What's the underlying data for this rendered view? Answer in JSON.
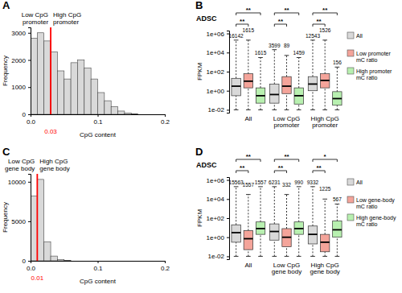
{
  "chart_data": [
    {
      "type": "histogram",
      "panel": "A",
      "bins": [
        0,
        0.01,
        0.02,
        0.03,
        0.04,
        0.05,
        0.06,
        0.07,
        0.08,
        0.09,
        0.1,
        0.11,
        0.12,
        0.13,
        0.14,
        0.15,
        0.16
      ],
      "values": [
        2800,
        3000,
        2700,
        2300,
        1600,
        1300,
        1900,
        2000,
        1700,
        1300,
        800,
        500,
        280,
        120,
        50,
        20
      ],
      "color": "#d9d9d9",
      "x_label": "CpG content",
      "y_label": "Frequency",
      "xlim": [
        0,
        0.2
      ],
      "xticks": [
        {
          "value": 0,
          "label": "0.0"
        },
        0.1,
        0.2
      ],
      "ylim": [
        0,
        3200
      ],
      "yticks": [
        0,
        1000,
        2000,
        3000
      ],
      "threshold": {
        "value": 0.03,
        "label": "0.03",
        "color": "#ff0000"
      },
      "annotations": [
        "Low CpG\npromoter",
        "High CpG\npromoter"
      ]
    },
    {
      "type": "box",
      "panel": "B",
      "title": "ADSC",
      "y_label": "FPKM",
      "log": "y",
      "categories": [
        "All",
        "Low CpG\npromoter",
        "High CpG\npromoter"
      ],
      "ylim": [
        0.005,
        2000000
      ],
      "yticks": [
        {
          "value": 0.01,
          "label": "1e-02"
        },
        {
          "value": 1,
          "label": "1e+00"
        },
        {
          "value": 100,
          "label": "1e+02"
        },
        {
          "value": 10000,
          "label": "1e+04"
        },
        {
          "value": 1000000,
          "label": "1e+06"
        }
      ],
      "series": [
        {
          "name": "All",
          "color": "#d9d9d9",
          "values": [
            [
              0.01,
              0.3,
              3,
              20,
              200000
            ],
            [
              0.01,
              0.05,
              0.4,
              5,
              20000
            ],
            [
              0.01,
              1,
              5,
              30,
              200000
            ]
          ],
          "counts": [
            16142,
            3599,
            12543
          ]
        },
        {
          "name": "Low promoter\nmC ratio",
          "color": "#f4a49a",
          "values": [
            [
              0.01,
              2,
              10,
              60,
              200000
            ],
            [
              0.01,
              0.5,
              3,
              30,
              5000
            ],
            [
              0.01,
              2,
              12,
              60,
              200000
            ]
          ],
          "counts": [
            1615,
            89,
            1526
          ]
        },
        {
          "name": "High promoter\nmC ratio",
          "color": "#b8f0b0",
          "values": [
            [
              0.01,
              0.05,
              0.3,
              2,
              3000
            ],
            [
              0.01,
              0.04,
              0.3,
              2,
              3000
            ],
            [
              0.01,
              0.03,
              0.15,
              0.8,
              300
            ]
          ],
          "counts": [
            1615,
            1459,
            156
          ]
        }
      ],
      "significance": [
        [
          "**",
          "**"
        ],
        [
          "**",
          "**"
        ],
        [
          "**",
          "**"
        ]
      ]
    },
    {
      "type": "histogram",
      "panel": "C",
      "bins": [
        0,
        0.01,
        0.02,
        0.03,
        0.04,
        0.05,
        0.06
      ],
      "values": [
        8200,
        10300,
        2400,
        600,
        150,
        50
      ],
      "color": "#d9d9d9",
      "x_label": "CpG content",
      "y_label": "Frequency",
      "xlim": [
        0,
        0.2
      ],
      "xticks": [
        {
          "value": 0,
          "label": "0.0"
        },
        0.1,
        0.2
      ],
      "ylim": [
        0,
        11000
      ],
      "yticks": [
        0,
        5000,
        10000
      ],
      "threshold": {
        "value": 0.01,
        "label": "0.01",
        "color": "#ff0000"
      },
      "annotations": [
        "Low CpG\ngene body",
        "High CpG\ngene body"
      ]
    },
    {
      "type": "box",
      "panel": "D",
      "title": "ADSC",
      "y_label": "FPKM",
      "log": "y",
      "categories": [
        "All",
        "Low CpG\ngene body",
        "High CpG\ngene body"
      ],
      "ylim": [
        0.005,
        2000000
      ],
      "yticks": [
        {
          "value": 0.01,
          "label": "1e-02"
        },
        {
          "value": 1,
          "label": "1e+00"
        },
        {
          "value": 100,
          "label": "1e+02"
        },
        {
          "value": 10000,
          "label": "1e+04"
        },
        {
          "value": 1000000,
          "label": "1e+06"
        }
      ],
      "series": [
        {
          "name": "All",
          "color": "#d9d9d9",
          "values": [
            [
              0.01,
              0.3,
              3,
              20,
              200000
            ],
            [
              0.01,
              0.5,
              4,
              25,
              200000
            ],
            [
              0.01,
              0.2,
              2,
              15,
              200000
            ]
          ],
          "counts": [
            15563,
            6231,
            9332
          ]
        },
        {
          "name": "Low gene-body\nmC ratio",
          "color": "#f4a49a",
          "values": [
            [
              0.01,
              0.05,
              0.7,
              5,
              30000
            ],
            [
              0.01,
              0.1,
              1,
              8,
              30000
            ],
            [
              0.01,
              0.03,
              0.3,
              2,
              10000
            ]
          ],
          "counts": [
            1557,
            332,
            1225
          ]
        },
        {
          "name": "High gene-body\nmC ratio",
          "color": "#b8f0b0",
          "values": [
            [
              0.01,
              2,
              8,
              40,
              200000
            ],
            [
              0.01,
              2,
              8,
              40,
              200000
            ],
            [
              0.01,
              1,
              6,
              50,
              3000
            ]
          ],
          "counts": [
            1557,
            990,
            567
          ]
        }
      ],
      "significance": [
        [
          "**",
          "**"
        ],
        [
          "**",
          "**"
        ],
        [
          "**",
          "*"
        ]
      ]
    }
  ]
}
